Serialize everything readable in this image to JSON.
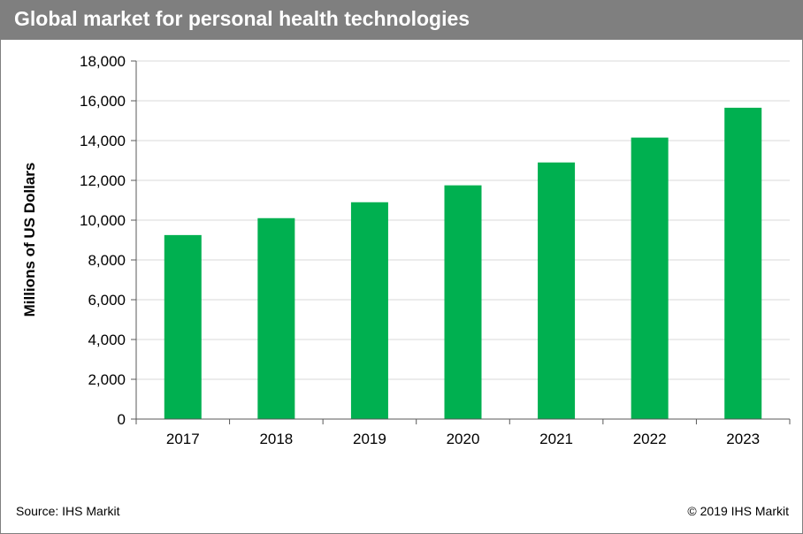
{
  "header": {
    "title": "Global market for personal health technologies"
  },
  "footer": {
    "source": "Source: IHS Markit",
    "copyright": "© 2019 IHS Markit"
  },
  "colors": {
    "bar": "#00b050",
    "title_bar": "#7f7f7f",
    "grid": "#d9d9d9",
    "axis": "#595959"
  },
  "chart_data": {
    "type": "bar",
    "title": "Global market for personal health technologies",
    "xlabel": "",
    "ylabel": "Millions of US Dollars",
    "categories": [
      "2017",
      "2018",
      "2019",
      "2020",
      "2021",
      "2022",
      "2023"
    ],
    "values": [
      9250,
      10100,
      10900,
      11750,
      12900,
      14150,
      15650
    ],
    "ylim": [
      0,
      18000
    ],
    "yticks": [
      0,
      2000,
      4000,
      6000,
      8000,
      10000,
      12000,
      14000,
      16000,
      18000
    ],
    "ytick_labels": [
      "0",
      "2,000",
      "4,000",
      "6,000",
      "8,000",
      "10,000",
      "12,000",
      "14,000",
      "16,000",
      "18,000"
    ],
    "grid": true,
    "legend": "none"
  }
}
